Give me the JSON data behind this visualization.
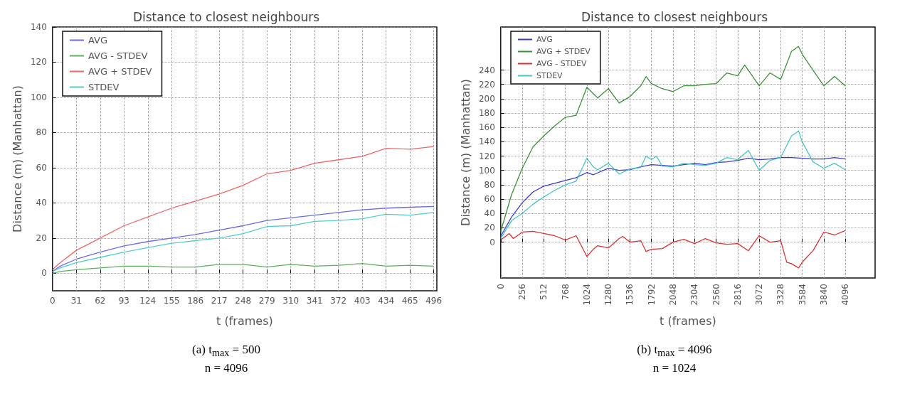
{
  "chart_data": [
    {
      "type": "line",
      "title": "Distance to closest neighbours",
      "xlabel": "t (frames)",
      "ylabel": "Distance (m) (Manhattan)",
      "xlim": [
        0,
        500
      ],
      "xticks": [
        0,
        31,
        62,
        93,
        124,
        155,
        186,
        217,
        248,
        279,
        310,
        341,
        372,
        403,
        434,
        465,
        496
      ],
      "ylim": [
        -10,
        140
      ],
      "yticks": [
        0,
        20,
        40,
        60,
        80,
        100,
        120,
        140
      ],
      "grid": true,
      "legend": "top left",
      "line_style": "solid",
      "marker": "none",
      "annotations": [
        "(a) t$_{max}$ = 500",
        "n = 4096"
      ],
      "x": [
        0,
        10,
        31,
        62,
        93,
        124,
        155,
        186,
        217,
        248,
        279,
        310,
        341,
        372,
        403,
        434,
        465,
        496
      ],
      "series": [
        {
          "name": "AVG",
          "color": "#6a6ae8",
          "values": [
            1,
            4,
            8,
            12,
            15.5,
            18,
            20,
            22,
            24.5,
            27,
            30,
            31.5,
            33,
            34.5,
            36,
            37,
            37.5,
            38
          ]
        },
        {
          "name": "AVG - STDEV",
          "color": "#5cae5c",
          "values": [
            0,
            1,
            2,
            3,
            4,
            4,
            3.5,
            3.5,
            5,
            5,
            3.5,
            5,
            4,
            4.5,
            5.5,
            4,
            4.5,
            4
          ]
        },
        {
          "name": "AVG + STDEV",
          "color": "#ee6666",
          "values": [
            2,
            6,
            13,
            20,
            27,
            32,
            37,
            41,
            45,
            50,
            56.5,
            58.5,
            62.5,
            64.5,
            66.5,
            71,
            70.5,
            72
          ]
        },
        {
          "name": "STDEV",
          "color": "#55cccc",
          "values": [
            1,
            3,
            6,
            9,
            12,
            14.5,
            17,
            18.5,
            20,
            22.5,
            26.5,
            27,
            29.5,
            30,
            31,
            33.5,
            33,
            34.5
          ]
        }
      ]
    },
    {
      "type": "line",
      "title": "Distance to closest neighbours",
      "xlabel": "t (frames)",
      "ylabel": "Distance (m) (Manhattan)",
      "xlim": [
        0,
        4450
      ],
      "xticks": [
        0,
        256,
        512,
        768,
        1024,
        1280,
        1536,
        1792,
        2048,
        2304,
        2560,
        2816,
        3072,
        3328,
        3584,
        3840,
        4096
      ],
      "ylim": [
        -50,
        300
      ],
      "yticks": [
        0,
        20,
        40,
        60,
        80,
        100,
        120,
        140,
        160,
        180,
        200,
        220,
        240
      ],
      "grid": true,
      "legend": "top left",
      "line_style": "solid",
      "marker": "none",
      "annotations": [
        "(b) t$_{max}$ = 4096",
        "n = 1024"
      ],
      "series": [
        {
          "name": "AVG",
          "color": "#3a3acc",
          "x": [
            0,
            128,
            256,
            384,
            512,
            640,
            768,
            896,
            1024,
            1100,
            1280,
            1408,
            1536,
            1664,
            1792,
            1920,
            2048,
            2176,
            2304,
            2432,
            2560,
            2688,
            2816,
            2944,
            3072,
            3200,
            3328,
            3456,
            3584,
            3712,
            3840,
            3968,
            4096
          ],
          "values": [
            8,
            35,
            55,
            70,
            78,
            82,
            86,
            90,
            97,
            94,
            103,
            100,
            101,
            105,
            108,
            107,
            106,
            108,
            110,
            108,
            111,
            112,
            114,
            117,
            115,
            116,
            118,
            118,
            117,
            116,
            116,
            118,
            116
          ]
        },
        {
          "name": "AVG + STDEV",
          "color": "#3a913a",
          "x": [
            0,
            128,
            256,
            384,
            512,
            640,
            768,
            896,
            1024,
            1100,
            1152,
            1280,
            1408,
            1536,
            1664,
            1728,
            1792,
            1920,
            2048,
            2176,
            2304,
            2432,
            2560,
            2688,
            2816,
            2900,
            3072,
            3200,
            3328,
            3456,
            3540,
            3584,
            3712,
            3840,
            3968,
            4096
          ],
          "values": [
            15,
            66,
            103,
            133,
            148,
            162,
            174,
            177,
            216,
            207,
            201,
            214,
            194,
            203,
            218,
            231,
            221,
            214,
            210,
            218,
            218,
            220,
            221,
            236,
            232,
            247,
            218,
            236,
            227,
            266,
            273,
            262,
            240,
            218,
            231,
            218
          ]
        },
        {
          "name": "AVG - STDEV",
          "color": "#e03030",
          "x": [
            0,
            100,
            150,
            256,
            384,
            512,
            640,
            768,
            896,
            1024,
            1100,
            1152,
            1280,
            1408,
            1450,
            1536,
            1664,
            1728,
            1792,
            1920,
            2048,
            2176,
            2304,
            2432,
            2560,
            2688,
            2816,
            2944,
            3072,
            3200,
            3328,
            3400,
            3456,
            3540,
            3584,
            3712,
            3840,
            3968,
            4096
          ],
          "values": [
            3,
            12,
            5,
            14,
            15,
            12,
            9,
            3,
            9,
            -20,
            -10,
            -5,
            -8,
            5,
            8,
            0,
            2,
            -13,
            -10,
            -9,
            0,
            4,
            -2,
            5,
            -1,
            -3,
            -2,
            -12,
            9,
            0,
            2,
            -28,
            -30,
            -36,
            -28,
            -12,
            14,
            10,
            16
          ]
        },
        {
          "name": "STDEV",
          "color": "#44c4c4",
          "x": [
            0,
            128,
            256,
            384,
            512,
            640,
            768,
            896,
            1024,
            1100,
            1152,
            1280,
            1408,
            1536,
            1664,
            1728,
            1792,
            1850,
            1920,
            2048,
            2176,
            2304,
            2432,
            2560,
            2688,
            2816,
            2944,
            3072,
            3200,
            3328,
            3456,
            3540,
            3584,
            3712,
            3840,
            3968,
            4096
          ],
          "values": [
            5,
            30,
            40,
            53,
            63,
            72,
            80,
            85,
            117,
            105,
            101,
            110,
            95,
            102,
            104,
            120,
            115,
            120,
            106,
            105,
            110,
            108,
            107,
            110,
            118,
            115,
            128,
            100,
            114,
            118,
            148,
            155,
            140,
            112,
            103,
            110,
            101
          ]
        }
      ]
    }
  ]
}
